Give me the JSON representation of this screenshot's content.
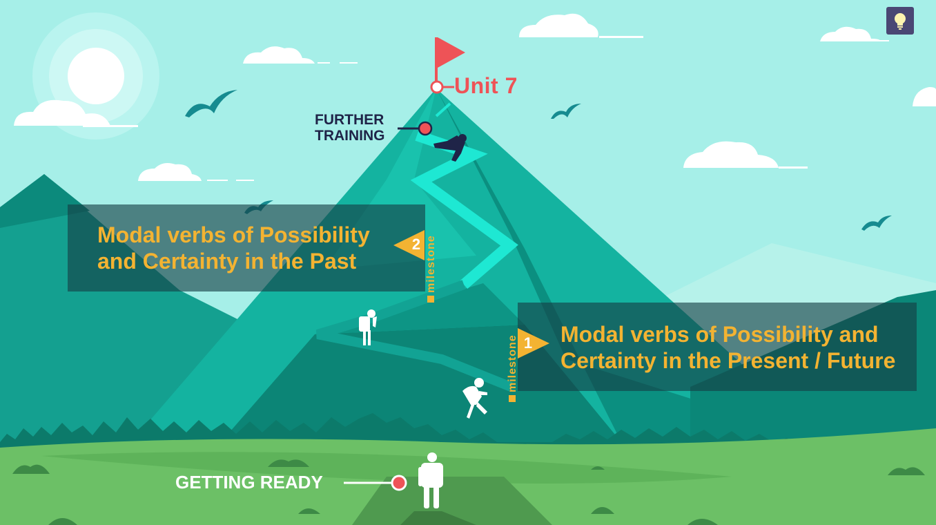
{
  "scene": {
    "unit_title": "Unit 7",
    "further_training": [
      "FURTHER",
      "TRAINING"
    ],
    "getting_ready": "GETTING READY"
  },
  "milestones": [
    {
      "number": "2",
      "tag": "milestone",
      "lines": [
        "Modal verbs of Possibility",
        "and Certainty in the Past"
      ]
    },
    {
      "number": "1",
      "tag": "milestone",
      "lines": [
        "Modal verbs of Possibility and",
        "Certainty in the Present / Future"
      ]
    }
  ],
  "toolbar": {
    "hint_icon": "lightbulb-icon"
  },
  "colors": {
    "sky": "#a6efe8",
    "mountain_dark": "#0b8f80",
    "mountain_light": "#14b3a0",
    "trail": "#1ee8d3",
    "accent_red": "#ee5357",
    "accent_gold": "#f3b332",
    "grass": "#6cc066",
    "hint_button": "#4a4774"
  }
}
